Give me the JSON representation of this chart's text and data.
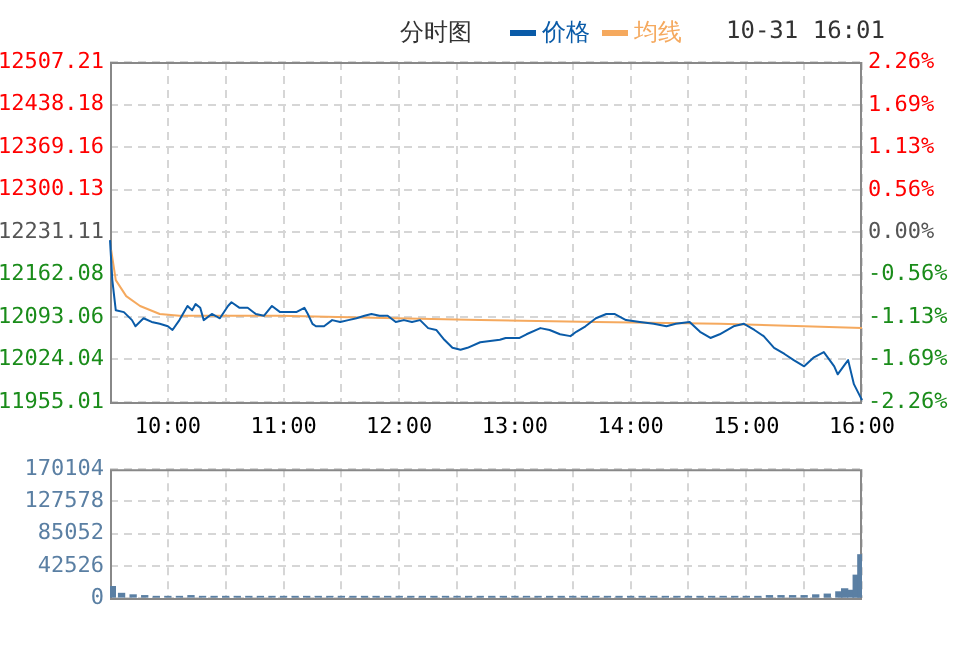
{
  "chart_data": [
    {
      "type": "line",
      "title": "分时图",
      "annotations": [
        "10-31 16:01"
      ],
      "legend": "top",
      "grid": true,
      "marker": "none",
      "line_style": "solid",
      "xlim": [
        9.5,
        16
      ],
      "xticks": [
        {
          "value": 10,
          "label": "10:00"
        },
        {
          "value": 10.5,
          "label": null
        },
        {
          "value": 11,
          "label": "11:00"
        },
        {
          "value": 11.5,
          "label": null
        },
        {
          "value": 12,
          "label": "12:00"
        },
        {
          "value": 12.5,
          "label": null
        },
        {
          "value": 13,
          "label": "13:00"
        },
        {
          "value": 13.5,
          "label": null
        },
        {
          "value": 14,
          "label": "14:00"
        },
        {
          "value": 14.5,
          "label": null
        },
        {
          "value": 15,
          "label": "15:00"
        },
        {
          "value": 15.5,
          "label": null
        },
        {
          "value": 16,
          "label": "16:00"
        }
      ],
      "ylim": [
        11955.01,
        12507.21
      ],
      "yticks": [
        11955.01,
        12024.04,
        12093.06,
        12162.08,
        12231.11,
        12300.13,
        12369.16,
        12438.18,
        12507.21
      ],
      "y2lim": [
        -2.26,
        2.26
      ],
      "y2ticks": [
        {
          "value": -2.26,
          "label": "-2.26%"
        },
        {
          "value": -1.69,
          "label": "-1.69%"
        },
        {
          "value": -1.13,
          "label": "-1.13%"
        },
        {
          "value": -0.56,
          "label": "-0.56%"
        },
        {
          "value": 0,
          "label": "0.00%"
        },
        {
          "value": 0.56,
          "label": "0.56%"
        },
        {
          "value": 1.13,
          "label": "1.13%"
        },
        {
          "value": 1.69,
          "label": "1.69%"
        },
        {
          "value": 2.26,
          "label": "2.26%"
        }
      ],
      "series": [
        {
          "name": "价格",
          "color": "#0a5ba8",
          "x": [
            9.5,
            9.52,
            9.55,
            9.62,
            9.69,
            9.72,
            9.79,
            9.86,
            9.93,
            10.0,
            10.04,
            10.1,
            10.17,
            10.21,
            10.24,
            10.28,
            10.31,
            10.38,
            10.45,
            10.52,
            10.55,
            10.62,
            10.69,
            10.76,
            10.83,
            10.9,
            10.97,
            11.04,
            11.11,
            11.18,
            11.21,
            11.25,
            11.28,
            11.35,
            11.42,
            11.49,
            11.56,
            11.63,
            11.7,
            11.76,
            11.83,
            11.9,
            11.97,
            12.04,
            12.11,
            12.18,
            12.25,
            12.32,
            12.39,
            12.46,
            12.53,
            12.59,
            12.7,
            12.87,
            12.92,
            13.04,
            13.1,
            13.22,
            13.3,
            13.39,
            13.48,
            13.53,
            13.61,
            13.7,
            13.79,
            13.86,
            13.96,
            14.08,
            14.2,
            14.31,
            14.39,
            14.51,
            14.6,
            14.69,
            14.77,
            14.89,
            14.98,
            15.07,
            15.15,
            15.24,
            15.33,
            15.41,
            15.5,
            15.58,
            15.67,
            15.76,
            15.79,
            15.84,
            15.88,
            15.93,
            16.0
          ],
          "values": [
            12218,
            12153,
            12104,
            12101,
            12088,
            12078,
            12091,
            12085,
            12082,
            12078,
            12072,
            12088,
            12111,
            12104,
            12114,
            12108,
            12088,
            12098,
            12091,
            12111,
            12117,
            12108,
            12108,
            12098,
            12095,
            12111,
            12101,
            12101,
            12101,
            12108,
            12098,
            12082,
            12078,
            12078,
            12088,
            12085,
            12088,
            12091,
            12095,
            12098,
            12095,
            12095,
            12085,
            12088,
            12085,
            12088,
            12075,
            12072,
            12056,
            12043,
            12040,
            12043,
            12052,
            12056,
            12059,
            12059,
            12065,
            12075,
            12072,
            12065,
            12062,
            12069,
            12078,
            12091,
            12098,
            12098,
            12088,
            12085,
            12082,
            12078,
            12082,
            12085,
            12069,
            12059,
            12065,
            12078,
            12082,
            12072,
            12062,
            12043,
            12033,
            12023,
            12013,
            12027,
            12036,
            12013,
            12000,
            12013,
            12023,
            11984,
            11958
          ]
        },
        {
          "name": "均线",
          "color": "#f5a95e",
          "x": [
            9.51,
            9.55,
            9.64,
            9.76,
            9.93,
            10.1,
            10.97,
            11.97,
            12.7,
            13.7,
            14.77,
            15.5,
            16.0
          ],
          "values": [
            12202,
            12153,
            12127,
            12111,
            12098,
            12095,
            12095,
            12091,
            12088,
            12085,
            12082,
            12078,
            12075
          ]
        }
      ]
    },
    {
      "type": "bar",
      "grid": true,
      "tick_labels": "y",
      "color": "#5a7fa3",
      "xlim": [
        9.5,
        16
      ],
      "xticks": [
        {
          "value": 10,
          "label": null
        },
        {
          "value": 10.5,
          "label": null
        },
        {
          "value": 11,
          "label": null
        },
        {
          "value": 11.5,
          "label": null
        },
        {
          "value": 12,
          "label": null
        },
        {
          "value": 12.5,
          "label": null
        },
        {
          "value": 13,
          "label": null
        },
        {
          "value": 13.5,
          "label": null
        },
        {
          "value": 14,
          "label": null
        },
        {
          "value": 14.5,
          "label": null
        },
        {
          "value": 15,
          "label": null
        },
        {
          "value": 15.5,
          "label": null
        },
        {
          "value": 16,
          "label": null
        }
      ],
      "ylim": [
        0,
        170104
      ],
      "yticks": [
        0,
        42526,
        85052,
        127578,
        170104
      ],
      "x": [
        9.52,
        9.6,
        9.7,
        9.8,
        9.9,
        10.0,
        10.1,
        10.2,
        10.3,
        10.4,
        10.5,
        10.6,
        10.7,
        10.8,
        10.9,
        11.0,
        11.1,
        11.2,
        11.3,
        11.4,
        11.5,
        11.6,
        11.7,
        11.8,
        11.9,
        12.0,
        12.1,
        12.2,
        12.3,
        12.4,
        12.5,
        12.6,
        12.7,
        12.8,
        12.9,
        13.0,
        13.1,
        13.2,
        13.3,
        13.4,
        13.5,
        13.6,
        13.7,
        13.8,
        13.9,
        14.0,
        14.1,
        14.2,
        14.3,
        14.4,
        14.5,
        14.6,
        14.7,
        14.8,
        14.9,
        15.0,
        15.1,
        15.2,
        15.3,
        15.4,
        15.5,
        15.6,
        15.7,
        15.8,
        15.85,
        15.9,
        15.95,
        15.99
      ],
      "values": [
        15000,
        6000,
        4000,
        3000,
        2000,
        2000,
        2000,
        3000,
        2000,
        2000,
        2000,
        2000,
        2000,
        2000,
        2000,
        2000,
        2000,
        2000,
        2000,
        2000,
        2000,
        2000,
        2000,
        2000,
        2000,
        2000,
        2000,
        2000,
        2000,
        2000,
        2000,
        2000,
        2000,
        2000,
        2000,
        2000,
        2000,
        2000,
        2000,
        2000,
        2000,
        2000,
        2000,
        2000,
        2000,
        2000,
        2000,
        2000,
        2000,
        2000,
        2000,
        2000,
        2000,
        2000,
        2000,
        2000,
        2000,
        3000,
        3000,
        3000,
        3000,
        4000,
        5000,
        8000,
        12000,
        10000,
        30000,
        57000
      ]
    }
  ]
}
